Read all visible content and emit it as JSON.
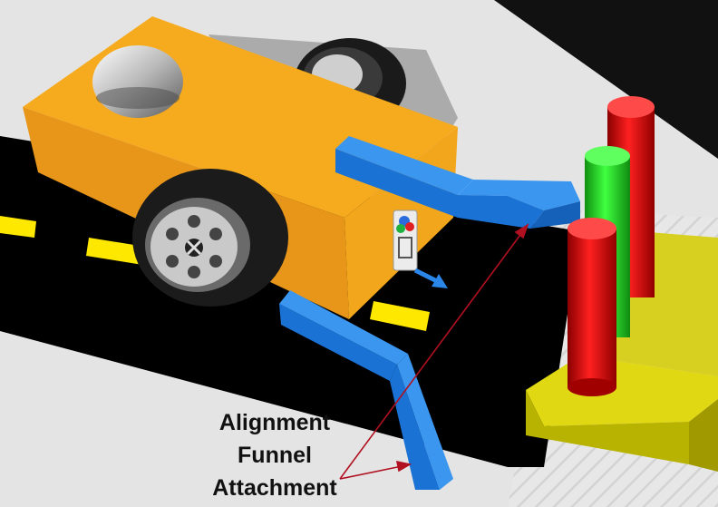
{
  "callout": {
    "line1": "Alignment",
    "line2": "Funnel",
    "line3": "Attachment"
  },
  "colors": {
    "robot_body": "#f0a020",
    "funnel_arms": "#1a7fe0",
    "cylinder_red": "#e01010",
    "cylinder_green": "#20d820",
    "platform": "#c9c400",
    "road": "#000000",
    "lane_marks": "#ffe800",
    "arrow": "#b01020"
  },
  "icons": [
    "ball-caster-icon",
    "color-sensor-icon",
    "direction-arrow-icon"
  ]
}
